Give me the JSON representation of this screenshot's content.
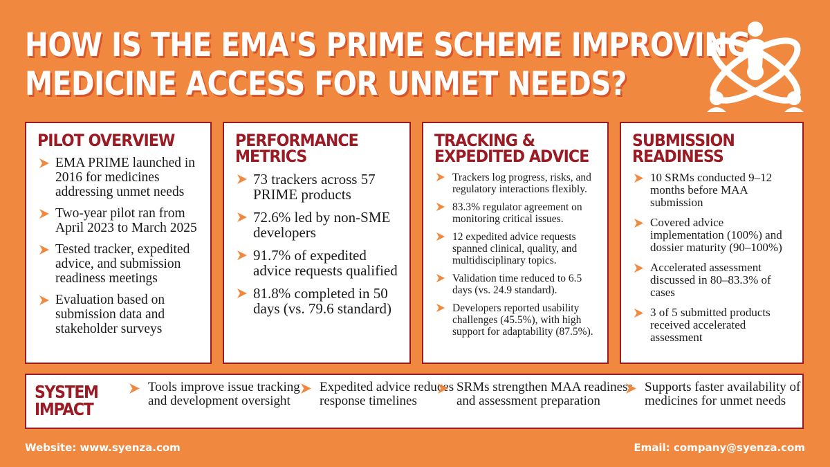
{
  "title": {
    "line1": "HOW IS THE EMA'S PRIME SCHEME IMPROVING",
    "line2": "MEDICINE ACCESS FOR UNMET NEEDS?"
  },
  "logo_icon": "atom-people-icon",
  "colors": {
    "background": "#f0893f",
    "accent": "#9b1b24",
    "arrow": "#f0893f",
    "title_shadow": "#d8542a"
  },
  "cards": [
    {
      "heading": "PILOT OVERVIEW",
      "items": [
        "EMA PRIME launched in 2016 for medicines addressing unmet needs",
        "Two-year pilot ran from April 2023 to March 2025",
        "Tested tracker, expedited advice, and submission readiness meetings",
        "Evaluation based on submission data and stakeholder surveys"
      ]
    },
    {
      "heading": "PERFORMANCE METRICS",
      "items": [
        "73 trackers across 57 PRIME products",
        "72.6% led by non-SME developers",
        "91.7% of expedited advice requests qualified",
        "81.8% completed in 50 days (vs. 79.6 standard)"
      ]
    },
    {
      "heading": "TRACKING & EXPEDITED ADVICE",
      "items": [
        "Trackers log progress, risks, and regulatory interactions flexibly.",
        "83.3% regulator agreement on monitoring critical issues.",
        "12 expedited advice requests spanned clinical, quality, and multidisciplinary topics.",
        "Validation time reduced to 6.5 days (vs. 24.9 standard).",
        "Developers reported usability challenges (45.5%), with high support for adaptability (87.5%)."
      ]
    },
    {
      "heading": "SUBMISSION READINESS",
      "items": [
        "10 SRMs conducted 9–12 months before MAA submission",
        "Covered advice implementation (100%) and dossier maturity (90–100%)",
        "Accelerated assessment discussed in 80–83.3% of cases",
        "3 of 5 submitted products received accelerated assessment"
      ]
    }
  ],
  "impact": {
    "heading": "SYSTEM IMPACT",
    "items": [
      "Tools improve issue tracking and development oversight",
      "Expedited advice reduces response timelines",
      "SRMs strengthen MAA readiness and assessment preparation",
      "Supports faster availability of medicines for unmet needs"
    ]
  },
  "footer": {
    "website": "Website: www.syenza.com",
    "email": "Email: company@syenza.com"
  }
}
